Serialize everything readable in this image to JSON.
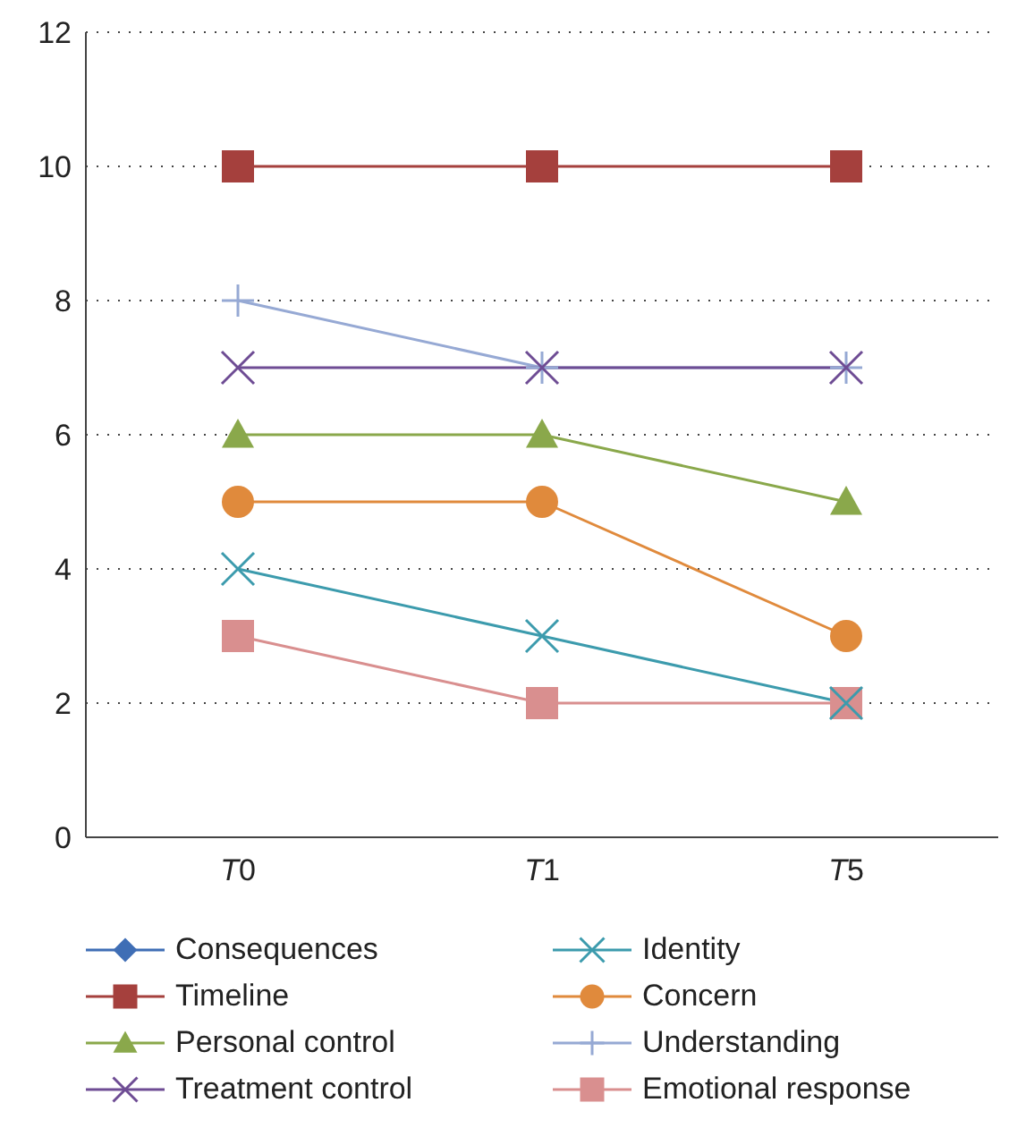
{
  "chart_data": {
    "type": "line",
    "categories": [
      "T0",
      "T1",
      "T5"
    ],
    "series": [
      {
        "name": "Consequences",
        "color": "#3f6eb5",
        "marker": "diamond",
        "values": [
          null,
          null,
          null
        ]
      },
      {
        "name": "Timeline",
        "color": "#a5403d",
        "marker": "square",
        "values": [
          10,
          10,
          10
        ]
      },
      {
        "name": "Personal control",
        "color": "#8aa84b",
        "marker": "triangle",
        "values": [
          6,
          6,
          5
        ]
      },
      {
        "name": "Treatment control",
        "color": "#6e4c94",
        "marker": "cross",
        "values": [
          7,
          7,
          7
        ]
      },
      {
        "name": "Identity",
        "color": "#3c9bad",
        "marker": "cross",
        "values": [
          4,
          3,
          2
        ]
      },
      {
        "name": "Concern",
        "color": "#e08a3c",
        "marker": "circle",
        "values": [
          5,
          5,
          3
        ]
      },
      {
        "name": "Understanding",
        "color": "#96a9d4",
        "marker": "plus",
        "values": [
          8,
          7,
          7
        ]
      },
      {
        "name": "Emotional response",
        "color": "#d98f8f",
        "marker": "square",
        "values": [
          3,
          2,
          2
        ]
      }
    ],
    "ylim": [
      0,
      12
    ],
    "yticks": [
      0,
      2,
      4,
      6,
      8,
      10,
      12
    ],
    "grid": "y",
    "legend": "bottom"
  }
}
